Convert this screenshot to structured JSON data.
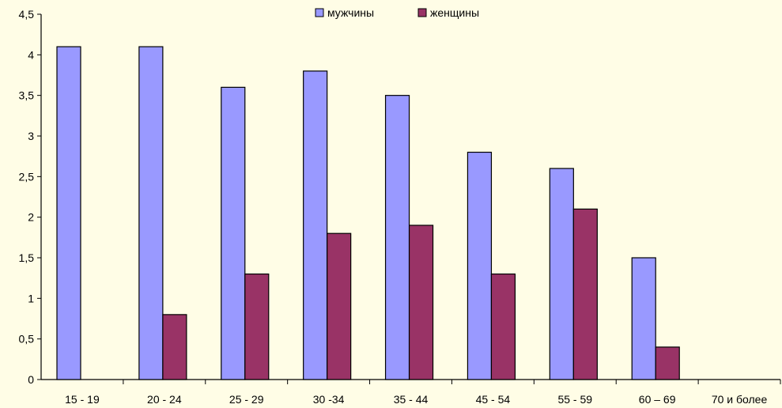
{
  "chart_data": {
    "type": "bar",
    "categories": [
      "15 - 19",
      "20 - 24",
      "25 - 29",
      "30 -34",
      "35 - 44",
      "45 - 54",
      "55 - 59",
      "60 – 69",
      "70  и более"
    ],
    "series": [
      {
        "name": "мужчины",
        "color": "#9999ff",
        "values": [
          4.1,
          4.1,
          3.6,
          3.8,
          3.5,
          2.8,
          2.6,
          1.5,
          0
        ]
      },
      {
        "name": "женщины",
        "color": "#993366",
        "values": [
          0,
          0.8,
          1.3,
          1.8,
          1.9,
          1.3,
          2.1,
          0.4,
          0
        ]
      }
    ],
    "yticks": [
      "0",
      "0,5",
      "1",
      "1,5",
      "2",
      "2,5",
      "3",
      "3,5",
      "4",
      "4,5"
    ],
    "ylim": [
      0,
      4.5
    ],
    "legend_position": "top-center",
    "grid": false,
    "background_color": "#fffde6"
  }
}
